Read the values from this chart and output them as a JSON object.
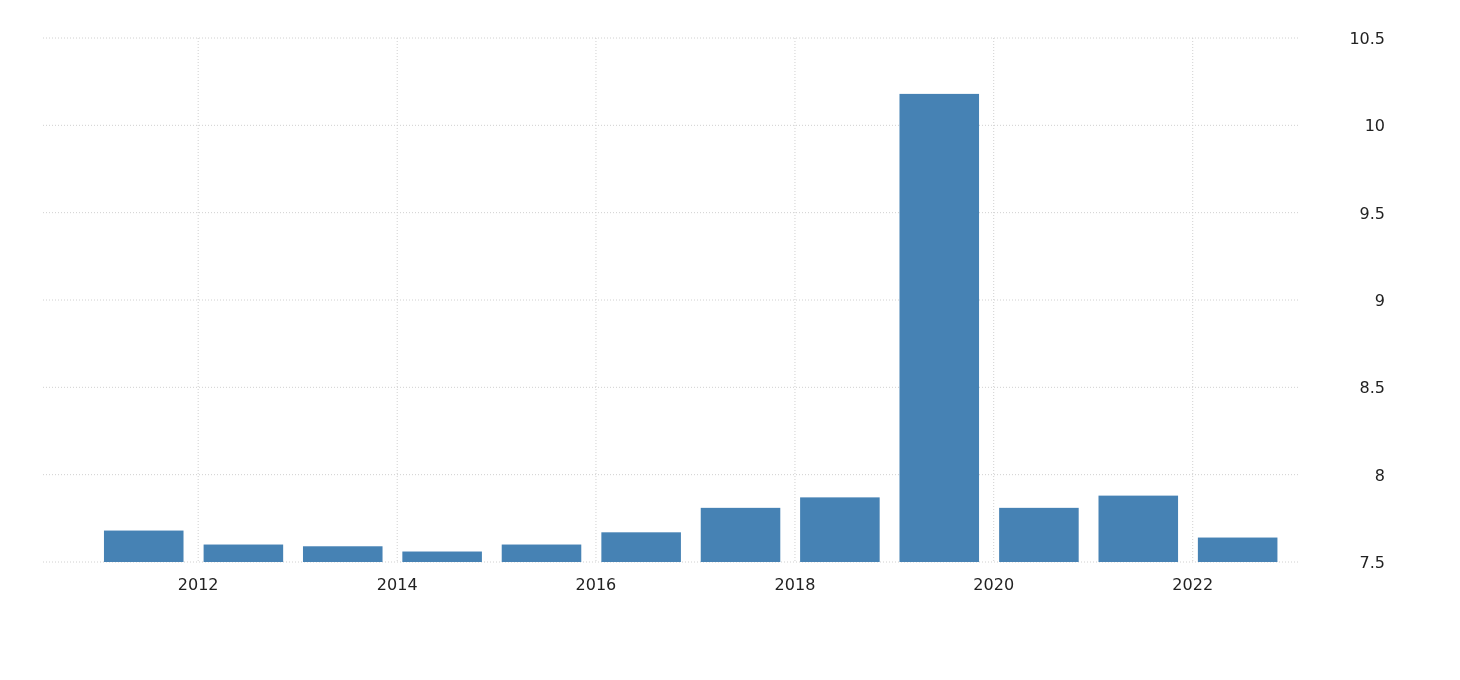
{
  "chart_data": {
    "type": "bar",
    "x": [
      "2011-06-15",
      "2012-06-15",
      "2013-06-15",
      "2014-06-15",
      "2015-06-15",
      "2016-06-15",
      "2017-06-15",
      "2018-06-15",
      "2019-06-15",
      "2020-06-15",
      "2021-06-15",
      "2022-06-15"
    ],
    "values": [
      7.68,
      7.6,
      7.59,
      7.56,
      7.6,
      7.67,
      7.81,
      7.87,
      10.18,
      7.81,
      7.88,
      7.64
    ],
    "color": "#4682b4",
    "xlim": [
      "2010-06-10",
      "2023-01-30"
    ],
    "xticks": [
      "2012",
      "2014",
      "2016",
      "2018",
      "2020",
      "2022"
    ],
    "ylim": [
      7.5,
      10.5
    ],
    "yticks": [
      7.5,
      8,
      8.5,
      9,
      9.5,
      10,
      10.5
    ],
    "grid": true
  }
}
